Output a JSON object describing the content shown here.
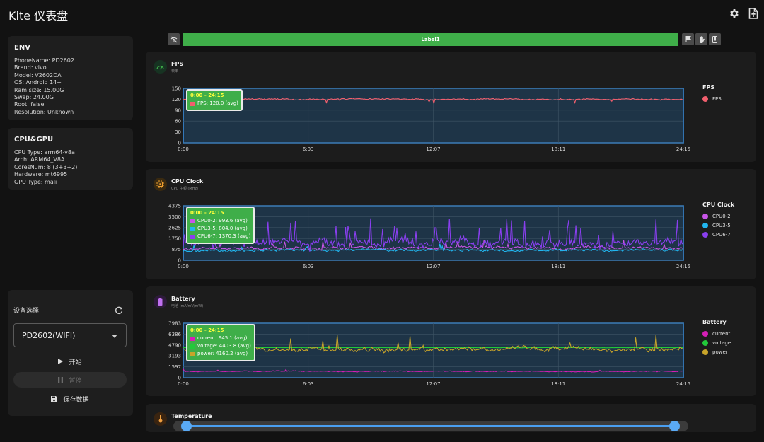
{
  "app": {
    "title": "Kite 仪表盘"
  },
  "topbar": {
    "icons": [
      "gear-icon",
      "export-icon"
    ]
  },
  "env": {
    "title": "ENV",
    "lines": [
      "PhoneName: PD2602",
      "Brand: vivo",
      "Model: V2602DA",
      "OS: Android 14+",
      "Ram size: 15.00G",
      "Swap: 24.00G",
      "Root: false",
      "Resolution: Unknown"
    ]
  },
  "cpu_gpu": {
    "title": "CPU&GPU",
    "lines": [
      "CPU Type: arm64-v8a",
      "Arch: ARM64_V8A",
      "CoresNum: 8 (3+3+2)",
      "Hardware: mt6995",
      "GPU Type: mali"
    ]
  },
  "device": {
    "title": "设备选择",
    "selected": "PD2602(WIFI)",
    "start_label": "开始",
    "pause_label": "暂停",
    "save_label": "保存数据"
  },
  "controls": {
    "label_text": "Label1",
    "icons": [
      "wifi-off-icon",
      "flag-icon",
      "hand-icon",
      "phone-icon"
    ]
  },
  "colors": {
    "accent_green": "#3fae49",
    "chart_border": "#3a8fe0",
    "chart_bg": "#1e3447"
  },
  "x_ticks": [
    "0:00",
    "6:03",
    "12:07",
    "18:11",
    "24:15"
  ],
  "slider": {
    "start": 0.0,
    "end": 1.0
  },
  "panels": [
    {
      "key": "fps",
      "title": "FPS",
      "subtitle": "帧率",
      "legend_title": "FPS",
      "tooltip": {
        "title": "0:00 - 24:15",
        "rows": [
          "FPS: 120.0 (avg)"
        ]
      },
      "chart_data": {
        "type": "line",
        "x_range": [
          "0:00",
          "24:15"
        ],
        "yticks": [
          "150",
          "120",
          "90",
          "60",
          "30",
          "0"
        ],
        "ylim": [
          0,
          150
        ],
        "series": [
          {
            "name": "FPS",
            "color": "#f25f6e",
            "avg": 120.0,
            "noise": 2.5,
            "spikes": 0.06
          }
        ]
      }
    },
    {
      "key": "cpu",
      "title": "CPU Clock",
      "subtitle": "CPU 主频 (MHz)",
      "legend_title": "CPU Clock",
      "tooltip": {
        "title": "0:00 - 24:15",
        "rows": [
          "CPU0-2: 993.6 (avg)",
          "CPU3-5: 804.0 (avg)",
          "CPU6-7: 1370.3 (avg)"
        ]
      },
      "chart_data": {
        "type": "line",
        "x_range": [
          "0:00",
          "24:15"
        ],
        "yticks": [
          "4375",
          "3500",
          "2625",
          "1750",
          "875",
          "0"
        ],
        "ylim": [
          0,
          4375
        ],
        "series": [
          {
            "name": "CPU0-2",
            "color": "#c855e8",
            "avg": 993.6,
            "noise": 150,
            "spikes": 0.04
          },
          {
            "name": "CPU3-5",
            "color": "#21b6f0",
            "avg": 804.0,
            "noise": 120,
            "spikes": 0.03
          },
          {
            "name": "CPU6-7",
            "color": "#8a3ff0",
            "avg": 1370.3,
            "noise": 450,
            "spikes": 0.12
          }
        ]
      }
    },
    {
      "key": "battery",
      "title": "Battery",
      "subtitle": "电池 (mA/mV/mW)",
      "legend_title": "Battery",
      "tooltip": {
        "title": "0:00 - 24:15",
        "rows": [
          "current: 945.1 (avg)",
          "voltage: 4403.8 (avg)",
          "power: 4160.2 (avg)"
        ]
      },
      "chart_data": {
        "type": "line",
        "x_range": [
          "0:00",
          "24:15"
        ],
        "yticks": [
          "7983",
          "6386",
          "4790",
          "3193",
          "1597",
          "0"
        ],
        "ylim": [
          0,
          7983
        ],
        "series": [
          {
            "name": "current",
            "color": "#d41fb6",
            "avg": 945.1,
            "noise": 80,
            "spikes": 0.02
          },
          {
            "name": "voltage",
            "color": "#22c93a",
            "avg": 4403.8,
            "noise": 30,
            "spikes": 0.0
          },
          {
            "name": "power",
            "color": "#c8a42a",
            "avg": 4160.2,
            "noise": 450,
            "spikes": 0.06
          }
        ]
      }
    }
  ],
  "next_panel": {
    "title": "Temperature"
  }
}
